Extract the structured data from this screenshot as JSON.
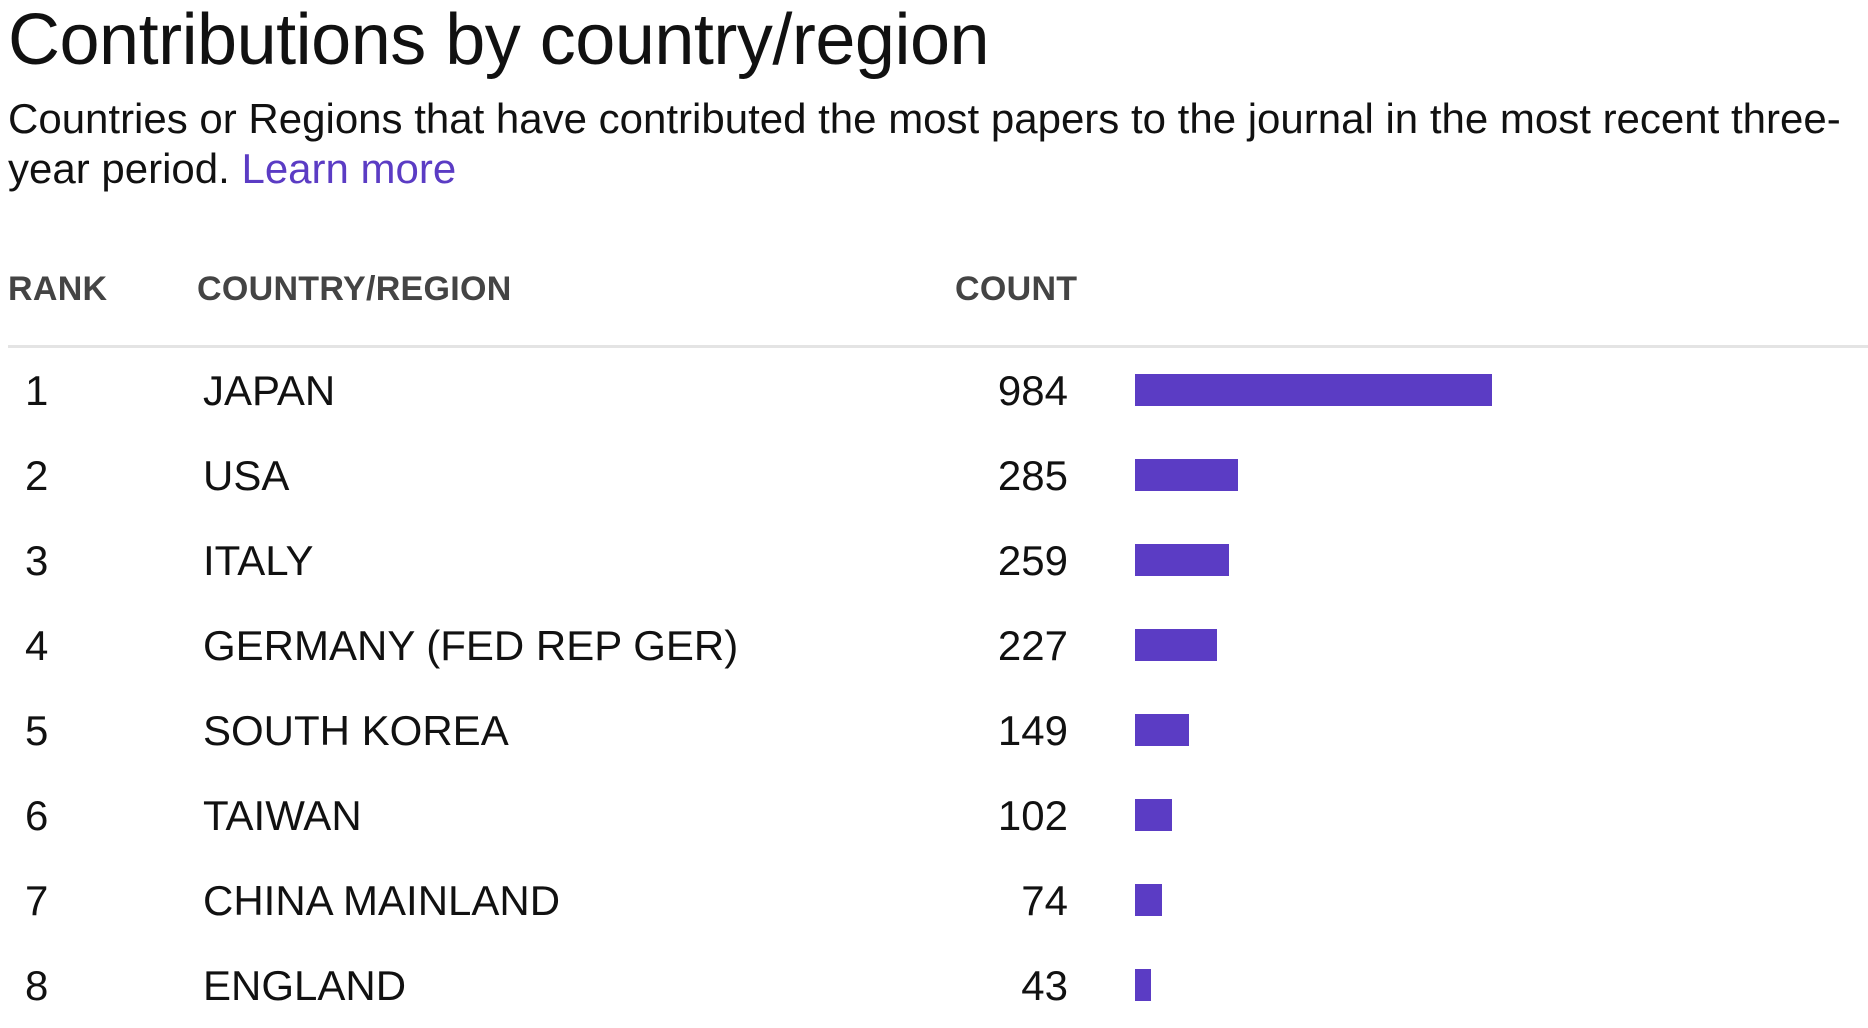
{
  "title": "Contributions by country/region",
  "description": "Countries or Regions that have contributed the most papers to the journal in the most recent three-year period.",
  "learn_more": "Learn more",
  "colors": {
    "accent": "#5b3cc4",
    "bar": "#5b3cc4",
    "text": "#111111",
    "header_text": "#444444",
    "divider": "#e4e4e4"
  },
  "table": {
    "headers": {
      "rank": "RANK",
      "country": "COUNTRY/REGION",
      "count": "COUNT"
    }
  },
  "chart_data": {
    "type": "bar",
    "orientation": "horizontal",
    "title": "Contributions by country/region",
    "rank_label": "RANK",
    "category_label": "COUNTRY/REGION",
    "value_label": "COUNT",
    "ranks": [
      "1",
      "2",
      "3",
      "4",
      "5",
      "6",
      "7",
      "8"
    ],
    "categories": [
      "JAPAN",
      "USA",
      "ITALY",
      "GERMANY (FED REP GER)",
      "SOUTH KOREA",
      "TAIWAN",
      "CHINA MAINLAND",
      "ENGLAND"
    ],
    "values": [
      984,
      285,
      259,
      227,
      149,
      102,
      74,
      43
    ],
    "xlim": [
      0,
      984
    ],
    "grid": false,
    "legend": "none"
  }
}
